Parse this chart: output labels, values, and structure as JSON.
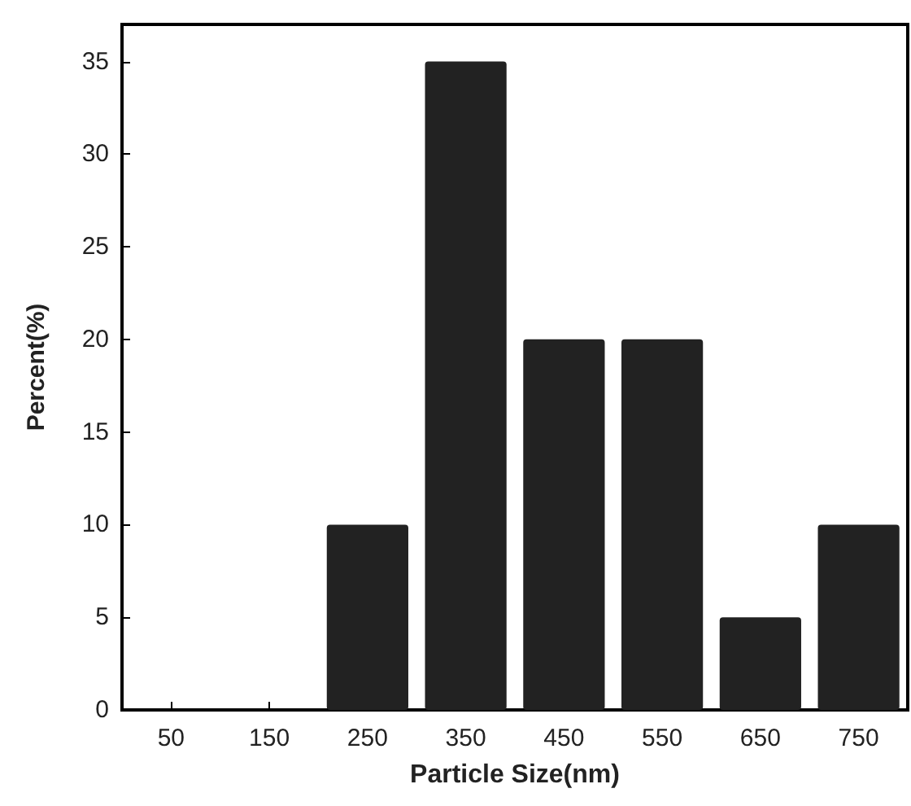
{
  "chart_data": {
    "type": "bar",
    "xlabel": "Particle Size(nm)",
    "ylabel": "Percent(%)",
    "categories": [
      "50",
      "150",
      "250",
      "350",
      "450",
      "550",
      "650",
      "750"
    ],
    "values": [
      0,
      0,
      10,
      35,
      20,
      20,
      5,
      10
    ],
    "color": "#222222",
    "ylim": [
      0,
      37
    ],
    "yticks": [
      0,
      5,
      10,
      15,
      20,
      25,
      30,
      35
    ],
    "grid": false
  }
}
